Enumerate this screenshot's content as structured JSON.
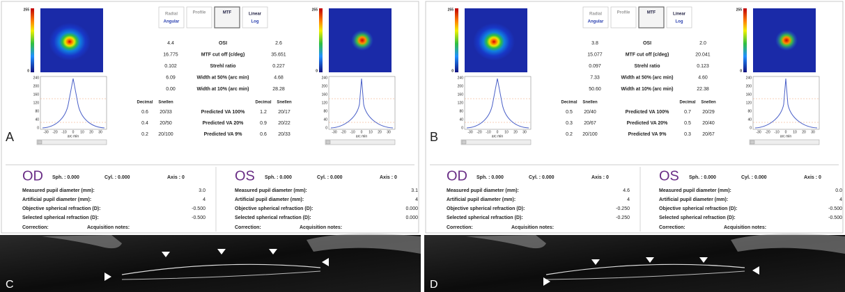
{
  "panels": [
    {
      "label": "A",
      "colorbar": {
        "max": "255",
        "min": "0"
      },
      "buttons": [
        {
          "top": "Radial",
          "bottom": "Angular"
        },
        {
          "top": "Profile"
        },
        {
          "top": "MTF"
        },
        {
          "top": "Linear",
          "bottom": "Log"
        }
      ],
      "plot": {
        "yticks": [
          "240",
          "200",
          "160",
          "120",
          "80",
          "40",
          "0"
        ],
        "xticks": [
          "-30",
          "-20",
          "-10",
          "0",
          "10",
          "20",
          "30"
        ],
        "xlabel": "arc min"
      },
      "metrics": [
        [
          "4.4",
          "OSI",
          "2.6"
        ],
        [
          "16.775",
          "MTF cut off (c/deg)",
          "35.651"
        ],
        [
          "0.102",
          "Strehl ratio",
          "0.227"
        ],
        [
          "6.09",
          "Width at 50% (arc min)",
          "4.68"
        ],
        [
          "0.00",
          "Width at 10% (arc min)",
          "28.28"
        ]
      ],
      "va_headers": [
        "Decimal",
        "Snellen",
        "Decimal",
        "Snellen"
      ],
      "va_rows": [
        [
          "0.6",
          "20/33",
          "Predicted VA 100%",
          "1.2",
          "20/17"
        ],
        [
          "0.4",
          "20/50",
          "Predicted VA 20%",
          "0.9",
          "20/22"
        ],
        [
          "0.2",
          "20/100",
          "Predicted VA 9%",
          "0.6",
          "20/33"
        ]
      ],
      "eyes": [
        {
          "name": "OD",
          "sph": "Sph. : 0.000",
          "cyl": "Cyl. : 0.000",
          "axis": "Axis : 0",
          "rows": [
            [
              "Measured pupil diameter (mm):",
              "3.0"
            ],
            [
              "Artificial pupil diameter (mm):",
              "4"
            ],
            [
              "Objective spherical refraction (D):",
              "-0.500"
            ],
            [
              "Selected spherical refraction (D):",
              "-0.500"
            ]
          ],
          "correction": "Correction:",
          "notes": "Acquisition notes:"
        },
        {
          "name": "OS",
          "sph": "Sph. : 0.000",
          "cyl": "Cyl. : 0.000",
          "axis": "Axis : 0",
          "rows": [
            [
              "Measured pupil diameter (mm):",
              "3.1"
            ],
            [
              "Artificial pupil diameter (mm):",
              "4"
            ],
            [
              "Objective spherical refraction (D):",
              "0.000"
            ],
            [
              "Selected spherical refraction (D):",
              "0.000"
            ]
          ],
          "correction": "Correction:",
          "notes": "Acquisition notes:"
        }
      ]
    },
    {
      "label": "B",
      "colorbar": {
        "max": "255",
        "min": "0"
      },
      "buttons": [
        {
          "top": "Radial",
          "bottom": "Angular"
        },
        {
          "top": "Profile"
        },
        {
          "top": "MTF"
        },
        {
          "top": "Linear",
          "bottom": "Log"
        }
      ],
      "plot": {
        "yticks": [
          "240",
          "200",
          "160",
          "120",
          "80",
          "40",
          "0"
        ],
        "xticks": [
          "-30",
          "-20",
          "-10",
          "0",
          "10",
          "20",
          "30"
        ],
        "xlabel": "arc min"
      },
      "metrics": [
        [
          "3.8",
          "OSI",
          "2.0"
        ],
        [
          "15.077",
          "MTF cut off (c/deg)",
          "20.041"
        ],
        [
          "0.097",
          "Strehl ratio",
          "0.123"
        ],
        [
          "7.33",
          "Width at 50% (arc min)",
          "4.60"
        ],
        [
          "50.60",
          "Width at 10% (arc min)",
          "22.38"
        ]
      ],
      "va_headers": [
        "Decimal",
        "Snellen",
        "Decimal",
        "Snellen"
      ],
      "va_rows": [
        [
          "0.5",
          "20/40",
          "Predicted VA 100%",
          "0.7",
          "20/29"
        ],
        [
          "0.3",
          "20/67",
          "Predicted VA 20%",
          "0.5",
          "20/40"
        ],
        [
          "0.2",
          "20/100",
          "Predicted VA 9%",
          "0.3",
          "20/67"
        ]
      ],
      "eyes": [
        {
          "name": "OD",
          "sph": "Sph. : 0.000",
          "cyl": "Cyl. : 0.000",
          "axis": "Axis : 0",
          "rows": [
            [
              "Measured pupil diameter (mm):",
              "4.6"
            ],
            [
              "Artificial pupil diameter (mm):",
              "4"
            ],
            [
              "Objective spherical refraction (D):",
              "-0.250"
            ],
            [
              "Selected spherical refraction (D):",
              "-0.250"
            ]
          ],
          "correction": "Correction:",
          "notes": "Acquisition notes:"
        },
        {
          "name": "OS",
          "sph": "Sph. : 0.000",
          "cyl": "Cyl. : 0.000",
          "axis": "Axis : 0",
          "rows": [
            [
              "Measured pupil diameter (mm):",
              "0.0"
            ],
            [
              "Artificial pupil diameter (mm):",
              "4"
            ],
            [
              "Objective spherical refraction (D):",
              "-0.500"
            ],
            [
              "Selected spherical refraction (D):",
              "-0.500"
            ]
          ],
          "correction": "Correction:",
          "notes": "Acquisition notes:"
        }
      ]
    }
  ],
  "images": [
    {
      "label": "C"
    },
    {
      "label": "D"
    }
  ]
}
